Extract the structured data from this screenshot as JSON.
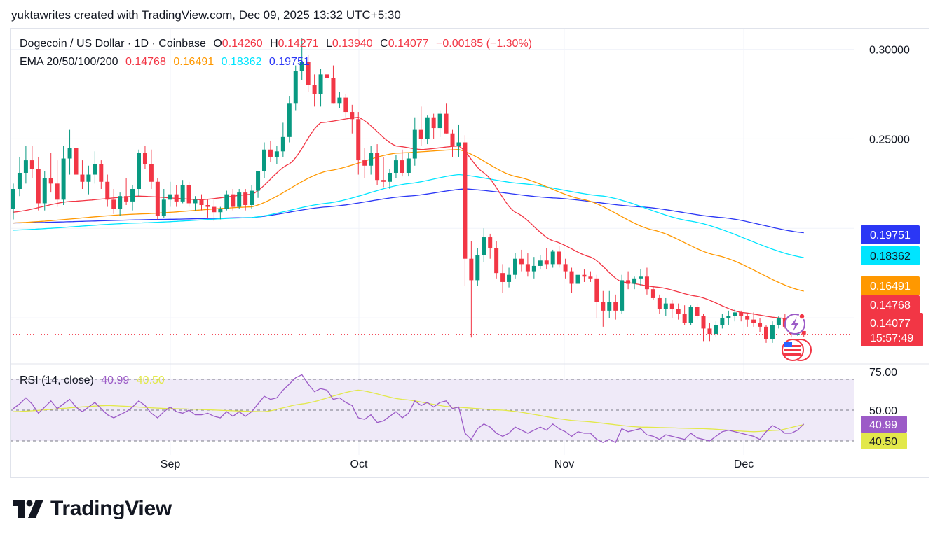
{
  "caption": "yuktawrites created with TradingView.com, Dec 09, 2025 13:32 UTC+5:30",
  "legend": {
    "symbol": "Dogecoin / US Dollar · 1D · Coinbase",
    "o_label": "O",
    "o_value": "0.14260",
    "h_label": "H",
    "h_value": "0.14271",
    "l_label": "L",
    "l_value": "0.13940",
    "c_label": "C",
    "c_value": "0.14077",
    "change": "−0.00185 (−1.30%)",
    "ema_label": "EMA 20/50/100/200",
    "ema20": "0.14768",
    "ema50": "0.16491",
    "ema100": "0.18362",
    "ema200": "0.19751",
    "rsi_label": "RSI (14, close)",
    "rsi_value": "40.99",
    "rsi_ma_value": "40.50"
  },
  "price_axis": {
    "ticks": [
      "0.30000",
      "0.25000"
    ]
  },
  "rsi_axis": {
    "ticks": [
      "75.00",
      "50.00"
    ]
  },
  "price_tags": {
    "ema200": "0.19751",
    "ema100": "0.18362",
    "ema50": "0.16491",
    "ema20": "0.14768",
    "last": "0.14077",
    "countdown": "15:57:49"
  },
  "rsi_tags": {
    "rsi": "40.99",
    "rsi_ma": "40.50"
  },
  "time_axis": [
    "Sep",
    "Oct",
    "Nov",
    "Dec"
  ],
  "branding": {
    "logo_text": "TradingView"
  },
  "colors": {
    "up": "#089981",
    "down": "#f23645",
    "ema20": "#f23645",
    "ema50": "#ff9800",
    "ema100": "#00e5ff",
    "ema200": "#2b37f5",
    "rsi": "#9c5bc7",
    "rsi_ma": "#e2e84a",
    "rsi_band": "#efeaf8"
  },
  "chart_data": {
    "type": "candlestick",
    "title": "Dogecoin / US Dollar · 1D · Coinbase",
    "x_range": [
      "2025-08-08",
      "2025-12-09"
    ],
    "ylim": [
      0.125,
      0.31
    ],
    "rsi_ylim": [
      30,
      80
    ],
    "rsi_bands": [
      70,
      50,
      30
    ],
    "candles": [
      [
        0.211,
        0.225,
        0.205,
        0.222
      ],
      [
        0.222,
        0.24,
        0.218,
        0.231
      ],
      [
        0.231,
        0.246,
        0.225,
        0.238
      ],
      [
        0.238,
        0.246,
        0.228,
        0.233
      ],
      [
        0.233,
        0.24,
        0.21,
        0.214
      ],
      [
        0.214,
        0.232,
        0.21,
        0.228
      ],
      [
        0.228,
        0.242,
        0.22,
        0.225
      ],
      [
        0.225,
        0.238,
        0.212,
        0.216
      ],
      [
        0.216,
        0.246,
        0.213,
        0.239
      ],
      [
        0.239,
        0.255,
        0.23,
        0.245
      ],
      [
        0.245,
        0.25,
        0.225,
        0.23
      ],
      [
        0.23,
        0.238,
        0.222,
        0.226
      ],
      [
        0.226,
        0.235,
        0.219,
        0.23
      ],
      [
        0.23,
        0.243,
        0.225,
        0.236
      ],
      [
        0.236,
        0.238,
        0.222,
        0.226
      ],
      [
        0.226,
        0.23,
        0.212,
        0.216
      ],
      [
        0.216,
        0.222,
        0.208,
        0.211
      ],
      [
        0.211,
        0.22,
        0.207,
        0.218
      ],
      [
        0.218,
        0.228,
        0.213,
        0.215
      ],
      [
        0.215,
        0.224,
        0.21,
        0.222
      ],
      [
        0.222,
        0.244,
        0.218,
        0.242
      ],
      [
        0.242,
        0.246,
        0.233,
        0.236
      ],
      [
        0.236,
        0.244,
        0.222,
        0.226
      ],
      [
        0.226,
        0.228,
        0.205,
        0.207
      ],
      [
        0.207,
        0.222,
        0.206,
        0.216
      ],
      [
        0.216,
        0.226,
        0.212,
        0.219
      ],
      [
        0.219,
        0.224,
        0.212,
        0.215
      ],
      [
        0.215,
        0.227,
        0.214,
        0.224
      ],
      [
        0.224,
        0.226,
        0.212,
        0.214
      ],
      [
        0.214,
        0.218,
        0.21,
        0.216
      ],
      [
        0.216,
        0.219,
        0.21,
        0.213
      ],
      [
        0.213,
        0.216,
        0.206,
        0.212
      ],
      [
        0.212,
        0.216,
        0.204,
        0.209
      ],
      [
        0.209,
        0.212,
        0.205,
        0.211
      ],
      [
        0.211,
        0.221,
        0.21,
        0.219
      ],
      [
        0.219,
        0.222,
        0.21,
        0.212
      ],
      [
        0.212,
        0.222,
        0.211,
        0.22
      ],
      [
        0.22,
        0.222,
        0.21,
        0.213
      ],
      [
        0.213,
        0.224,
        0.211,
        0.221
      ],
      [
        0.221,
        0.232,
        0.217,
        0.232
      ],
      [
        0.232,
        0.248,
        0.228,
        0.244
      ],
      [
        0.244,
        0.249,
        0.237,
        0.24
      ],
      [
        0.24,
        0.246,
        0.236,
        0.243
      ],
      [
        0.243,
        0.259,
        0.24,
        0.251
      ],
      [
        0.251,
        0.274,
        0.248,
        0.27
      ],
      [
        0.27,
        0.291,
        0.266,
        0.288
      ],
      [
        0.288,
        0.306,
        0.283,
        0.293
      ],
      [
        0.293,
        0.297,
        0.276,
        0.28
      ],
      [
        0.28,
        0.286,
        0.268,
        0.275
      ],
      [
        0.275,
        0.289,
        0.268,
        0.286
      ],
      [
        0.286,
        0.292,
        0.278,
        0.284
      ],
      [
        0.284,
        0.291,
        0.27,
        0.27
      ],
      [
        0.27,
        0.276,
        0.267,
        0.273
      ],
      [
        0.273,
        0.275,
        0.262,
        0.265
      ],
      [
        0.265,
        0.269,
        0.253,
        0.261
      ],
      [
        0.261,
        0.265,
        0.23,
        0.238
      ],
      [
        0.238,
        0.245,
        0.228,
        0.235
      ],
      [
        0.235,
        0.246,
        0.23,
        0.242
      ],
      [
        0.242,
        0.247,
        0.224,
        0.227
      ],
      [
        0.227,
        0.24,
        0.223,
        0.226
      ],
      [
        0.226,
        0.233,
        0.222,
        0.231
      ],
      [
        0.231,
        0.241,
        0.228,
        0.238
      ],
      [
        0.238,
        0.244,
        0.229,
        0.231
      ],
      [
        0.231,
        0.242,
        0.229,
        0.239
      ],
      [
        0.239,
        0.262,
        0.235,
        0.255
      ],
      [
        0.255,
        0.268,
        0.246,
        0.25
      ],
      [
        0.25,
        0.263,
        0.247,
        0.262
      ],
      [
        0.262,
        0.264,
        0.25,
        0.256
      ],
      [
        0.256,
        0.266,
        0.251,
        0.264
      ],
      [
        0.264,
        0.27,
        0.253,
        0.253
      ],
      [
        0.253,
        0.255,
        0.24,
        0.246
      ],
      [
        0.246,
        0.258,
        0.24,
        0.248
      ],
      [
        0.248,
        0.252,
        0.168,
        0.183
      ],
      [
        0.183,
        0.193,
        0.139,
        0.171
      ],
      [
        0.171,
        0.189,
        0.168,
        0.185
      ],
      [
        0.185,
        0.2,
        0.181,
        0.195
      ],
      [
        0.195,
        0.197,
        0.183,
        0.189
      ],
      [
        0.189,
        0.193,
        0.172,
        0.175
      ],
      [
        0.175,
        0.18,
        0.164,
        0.17
      ],
      [
        0.17,
        0.178,
        0.167,
        0.174
      ],
      [
        0.174,
        0.186,
        0.172,
        0.183
      ],
      [
        0.183,
        0.188,
        0.176,
        0.18
      ],
      [
        0.18,
        0.186,
        0.173,
        0.176
      ],
      [
        0.176,
        0.184,
        0.172,
        0.179
      ],
      [
        0.179,
        0.185,
        0.177,
        0.182
      ],
      [
        0.182,
        0.189,
        0.177,
        0.18
      ],
      [
        0.18,
        0.188,
        0.178,
        0.187
      ],
      [
        0.187,
        0.19,
        0.178,
        0.18
      ],
      [
        0.18,
        0.183,
        0.172,
        0.176
      ],
      [
        0.176,
        0.178,
        0.164,
        0.169
      ],
      [
        0.169,
        0.176,
        0.167,
        0.174
      ],
      [
        0.174,
        0.177,
        0.17,
        0.173
      ],
      [
        0.173,
        0.176,
        0.17,
        0.172
      ],
      [
        0.172,
        0.174,
        0.15,
        0.159
      ],
      [
        0.159,
        0.165,
        0.145,
        0.154
      ],
      [
        0.154,
        0.165,
        0.15,
        0.159
      ],
      [
        0.159,
        0.163,
        0.149,
        0.154
      ],
      [
        0.154,
        0.174,
        0.152,
        0.171
      ],
      [
        0.171,
        0.176,
        0.166,
        0.169
      ],
      [
        0.169,
        0.173,
        0.166,
        0.172
      ],
      [
        0.172,
        0.177,
        0.168,
        0.173
      ],
      [
        0.173,
        0.178,
        0.163,
        0.166
      ],
      [
        0.166,
        0.168,
        0.16,
        0.161
      ],
      [
        0.161,
        0.163,
        0.152,
        0.155
      ],
      [
        0.155,
        0.161,
        0.151,
        0.158
      ],
      [
        0.158,
        0.16,
        0.15,
        0.155
      ],
      [
        0.155,
        0.158,
        0.149,
        0.152
      ],
      [
        0.152,
        0.157,
        0.146,
        0.147
      ],
      [
        0.147,
        0.157,
        0.146,
        0.156
      ],
      [
        0.156,
        0.158,
        0.149,
        0.151
      ],
      [
        0.151,
        0.152,
        0.137,
        0.144
      ],
      [
        0.144,
        0.147,
        0.137,
        0.141
      ],
      [
        0.141,
        0.148,
        0.139,
        0.146
      ],
      [
        0.146,
        0.152,
        0.144,
        0.15
      ],
      [
        0.15,
        0.154,
        0.146,
        0.151
      ],
      [
        0.151,
        0.155,
        0.148,
        0.153
      ],
      [
        0.153,
        0.154,
        0.148,
        0.151
      ],
      [
        0.151,
        0.152,
        0.145,
        0.149
      ],
      [
        0.149,
        0.153,
        0.145,
        0.147
      ],
      [
        0.147,
        0.15,
        0.142,
        0.145
      ],
      [
        0.145,
        0.146,
        0.136,
        0.138
      ],
      [
        0.138,
        0.148,
        0.136,
        0.146
      ],
      [
        0.146,
        0.151,
        0.144,
        0.15
      ],
      [
        0.15,
        0.152,
        0.144,
        0.145
      ],
      [
        0.145,
        0.147,
        0.139,
        0.141
      ],
      [
        0.141,
        0.143,
        0.14,
        0.141
      ],
      [
        0.1426,
        0.14271,
        0.1394,
        0.14077
      ]
    ],
    "ema20_points": [
      [
        0,
        0.209
      ],
      [
        9,
        0.215
      ],
      [
        20,
        0.218
      ],
      [
        30,
        0.216
      ],
      [
        38,
        0.219
      ],
      [
        44,
        0.236
      ],
      [
        49,
        0.259
      ],
      [
        55,
        0.262
      ],
      [
        61,
        0.246
      ],
      [
        65,
        0.244
      ],
      [
        71,
        0.246
      ],
      [
        75,
        0.231
      ],
      [
        80,
        0.209
      ],
      [
        86,
        0.193
      ],
      [
        92,
        0.184
      ],
      [
        97,
        0.17
      ],
      [
        103,
        0.167
      ],
      [
        109,
        0.162
      ],
      [
        116,
        0.153
      ],
      [
        122,
        0.15
      ],
      [
        126,
        0.14768
      ]
    ],
    "ema50_points": [
      [
        0,
        0.203
      ],
      [
        20,
        0.208
      ],
      [
        38,
        0.212
      ],
      [
        50,
        0.232
      ],
      [
        61,
        0.242
      ],
      [
        71,
        0.244
      ],
      [
        80,
        0.229
      ],
      [
        91,
        0.216
      ],
      [
        102,
        0.199
      ],
      [
        112,
        0.185
      ],
      [
        126,
        0.16491
      ]
    ],
    "ema100_points": [
      [
        0,
        0.199
      ],
      [
        20,
        0.203
      ],
      [
        38,
        0.206
      ],
      [
        50,
        0.214
      ],
      [
        63,
        0.225
      ],
      [
        71,
        0.23
      ],
      [
        81,
        0.225
      ],
      [
        94,
        0.218
      ],
      [
        108,
        0.204
      ],
      [
        126,
        0.18362
      ]
    ],
    "ema200_points": [
      [
        0,
        0.203
      ],
      [
        24,
        0.205
      ],
      [
        38,
        0.206
      ],
      [
        50,
        0.212
      ],
      [
        63,
        0.218
      ],
      [
        72,
        0.222
      ],
      [
        86,
        0.217
      ],
      [
        100,
        0.212
      ],
      [
        113,
        0.206
      ],
      [
        126,
        0.19751
      ]
    ],
    "rsi": [
      51,
      54,
      58,
      54,
      48,
      52,
      56,
      51,
      54,
      57,
      52,
      49,
      52,
      55,
      51,
      47,
      45,
      47,
      49,
      52,
      56,
      53,
      48,
      45,
      49,
      52,
      49,
      48,
      50,
      47,
      47,
      48,
      46,
      45,
      49,
      46,
      49,
      46,
      49,
      54,
      59,
      57,
      58,
      63,
      67,
      71,
      73,
      67,
      62,
      64,
      63,
      57,
      58,
      55,
      53,
      45,
      44,
      47,
      42,
      43,
      46,
      49,
      45,
      48,
      56,
      53,
      55,
      52,
      55,
      56,
      51,
      52,
      35,
      31,
      38,
      41,
      39,
      35,
      33,
      35,
      39,
      37,
      35,
      37,
      39,
      37,
      41,
      38,
      36,
      33,
      36,
      35,
      35,
      31,
      29,
      31,
      29,
      38,
      36,
      37,
      38,
      34,
      33,
      31,
      34,
      33,
      32,
      31,
      35,
      32,
      31,
      30,
      33,
      36,
      37,
      36,
      35,
      34,
      33,
      31,
      36,
      40,
      38,
      35,
      35,
      37,
      40.99
    ],
    "rsi_ma_points": [
      [
        0,
        49
      ],
      [
        15,
        53
      ],
      [
        25,
        51
      ],
      [
        40,
        49
      ],
      [
        46,
        54
      ],
      [
        55,
        63
      ],
      [
        62,
        57
      ],
      [
        70,
        52
      ],
      [
        78,
        50
      ],
      [
        90,
        43
      ],
      [
        100,
        39
      ],
      [
        110,
        38
      ],
      [
        118,
        36
      ],
      [
        122,
        37
      ],
      [
        126,
        40.5
      ]
    ]
  }
}
